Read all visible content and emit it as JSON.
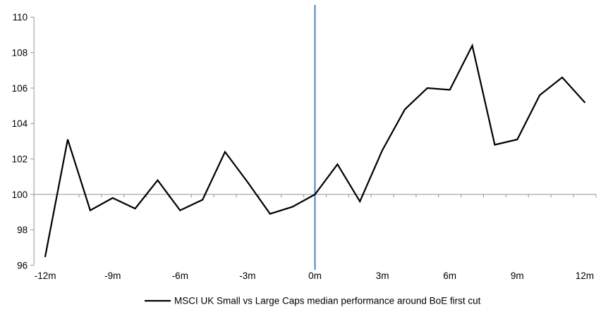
{
  "chart_data": {
    "type": "line",
    "title": "",
    "xlabel": "",
    "ylabel": "",
    "x": [
      -12,
      -11,
      -10,
      -9,
      -8,
      -7,
      -6,
      -5,
      -4,
      -3,
      -2,
      -1,
      0,
      1,
      2,
      3,
      4,
      5,
      6,
      7,
      8,
      9,
      10,
      11,
      12
    ],
    "series": [
      {
        "name": "MSCI UK Small vs Large Caps median performance around BoE first cut",
        "color": "#000000",
        "values": [
          96.5,
          103.1,
          99.1,
          99.8,
          99.2,
          100.8,
          99.1,
          99.7,
          102.4,
          100.7,
          98.9,
          99.3,
          100.0,
          101.7,
          99.6,
          102.5,
          104.8,
          106.0,
          105.9,
          108.4,
          102.8,
          103.1,
          105.6,
          106.6,
          105.2
        ]
      }
    ],
    "x_ticks": [
      {
        "m": -12,
        "label": "-12m"
      },
      {
        "m": -9,
        "label": "-9m"
      },
      {
        "m": -6,
        "label": "-6m"
      },
      {
        "m": -3,
        "label": "-3m"
      },
      {
        "m": 0,
        "label": "0m"
      },
      {
        "m": 3,
        "label": "3m"
      },
      {
        "m": 6,
        "label": "6m"
      },
      {
        "m": 9,
        "label": "9m"
      },
      {
        "m": 12,
        "label": "12m"
      }
    ],
    "y_ticks": [
      96,
      98,
      100,
      102,
      104,
      106,
      108,
      110
    ],
    "ylim": [
      96,
      110
    ],
    "xlim": [
      -12.5,
      12.5
    ],
    "grid": "off",
    "baseline_value": 100,
    "event_line": {
      "x": 0,
      "color": "#4f81bd"
    },
    "axis_color": "#a6a6a6",
    "legend": {
      "position": "bottom",
      "label": "MSCI UK Small vs Large Caps median performance around BoE first cut"
    }
  }
}
